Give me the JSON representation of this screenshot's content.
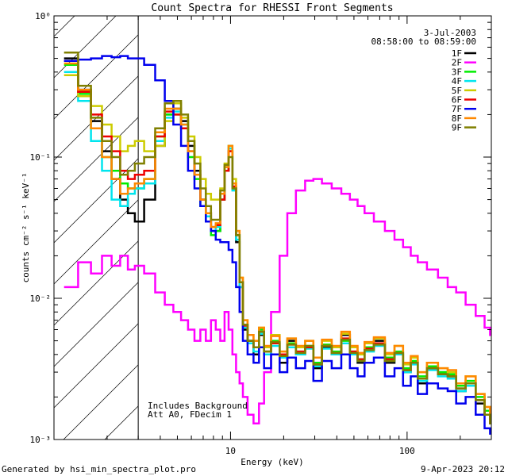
{
  "chart_data": {
    "type": "line",
    "title": "Count Spectra for RHESSI Front Segments",
    "xlabel": "Energy (keV)",
    "ylabel": "counts cm⁻² s⁻¹ keV⁻¹",
    "xscale": "log",
    "yscale": "log",
    "xlim": [
      1,
      300
    ],
    "ylim": [
      0.001,
      1
    ],
    "x_tick_labels": [
      "10",
      "100"
    ],
    "y_tick_labels": [
      "10⁰",
      "10⁻¹",
      "10⁻²",
      "10⁻³"
    ],
    "date": "3-Jul-2003",
    "time_range": "08:58:00 to 08:59:00",
    "note_lines": [
      "Includes Background",
      "Att A0, FDecim 1"
    ],
    "footer_left": "Generated by hsi_min_spectra_plot.pro",
    "footer_right": "9-Apr-2023 20:12",
    "attenuator_boundary_kev": 3,
    "series": [
      {
        "name": "1F",
        "color": "#000000",
        "energy": [
          1.25,
          1.5,
          1.75,
          2,
          2.25,
          2.5,
          2.75,
          3,
          3.5,
          4,
          4.5,
          5,
          5.5,
          6,
          6.5,
          7,
          7.5,
          8,
          8.5,
          9,
          9.5,
          10,
          10.5,
          11,
          11.5,
          12,
          13,
          14,
          15,
          16,
          18,
          20,
          22,
          25,
          28,
          31,
          35,
          40,
          45,
          50,
          55,
          60,
          70,
          80,
          90,
          100,
          110,
          120,
          140,
          160,
          180,
          200,
          230,
          260,
          290,
          300
        ],
        "counts": [
          0.5,
          0.3,
          0.18,
          0.11,
          0.07,
          0.05,
          0.04,
          0.035,
          0.05,
          0.12,
          0.2,
          0.22,
          0.18,
          0.12,
          0.08,
          0.05,
          0.04,
          0.03,
          0.03,
          0.05,
          0.08,
          0.11,
          0.06,
          0.025,
          0.012,
          0.006,
          0.005,
          0.004,
          0.0055,
          0.004,
          0.0048,
          0.0035,
          0.005,
          0.004,
          0.0045,
          0.0032,
          0.0045,
          0.004,
          0.0055,
          0.004,
          0.0035,
          0.0045,
          0.005,
          0.0035,
          0.004,
          0.003,
          0.0035,
          0.0025,
          0.0032,
          0.003,
          0.0028,
          0.0022,
          0.0025,
          0.0018,
          0.0015,
          0.0013
        ]
      },
      {
        "name": "2F",
        "color": "#ff00ff",
        "energy": [
          1.25,
          1.5,
          1.75,
          2,
          2.25,
          2.5,
          2.75,
          3,
          3.5,
          4,
          4.5,
          5,
          5.5,
          6,
          6.5,
          7,
          7.5,
          8,
          8.5,
          9,
          9.5,
          10,
          10.5,
          11,
          11.5,
          12,
          13,
          14,
          15,
          16,
          18,
          20,
          22,
          25,
          28,
          31,
          35,
          40,
          45,
          50,
          55,
          60,
          70,
          80,
          90,
          100,
          110,
          120,
          140,
          160,
          180,
          200,
          230,
          260,
          290,
          300
        ],
        "counts": [
          0.012,
          0.018,
          0.015,
          0.02,
          0.017,
          0.02,
          0.016,
          0.017,
          0.015,
          0.011,
          0.009,
          0.008,
          0.007,
          0.006,
          0.005,
          0.006,
          0.005,
          0.007,
          0.006,
          0.005,
          0.008,
          0.006,
          0.004,
          0.003,
          0.0025,
          0.002,
          0.0015,
          0.0013,
          0.0018,
          0.003,
          0.008,
          0.02,
          0.04,
          0.058,
          0.068,
          0.07,
          0.065,
          0.06,
          0.055,
          0.05,
          0.045,
          0.04,
          0.035,
          0.03,
          0.026,
          0.023,
          0.02,
          0.018,
          0.016,
          0.014,
          0.012,
          0.011,
          0.009,
          0.0075,
          0.0062,
          0.0055
        ]
      },
      {
        "name": "3F",
        "color": "#00ee00",
        "energy": [
          1.25,
          1.5,
          1.75,
          2,
          2.25,
          2.5,
          2.75,
          3,
          3.5,
          4,
          4.5,
          5,
          5.5,
          6,
          6.5,
          7,
          7.5,
          8,
          8.5,
          9,
          9.5,
          10,
          10.5,
          11,
          11.5,
          12,
          13,
          14,
          15,
          16,
          18,
          20,
          22,
          25,
          28,
          31,
          35,
          40,
          45,
          50,
          55,
          60,
          70,
          80,
          90,
          100,
          110,
          120,
          140,
          160,
          180,
          200,
          230,
          260,
          290,
          300
        ],
        "counts": [
          0.45,
          0.28,
          0.16,
          0.1,
          0.08,
          0.065,
          0.06,
          0.06,
          0.07,
          0.14,
          0.2,
          0.2,
          0.16,
          0.1,
          0.07,
          0.045,
          0.035,
          0.028,
          0.03,
          0.05,
          0.08,
          0.12,
          0.06,
          0.028,
          0.013,
          0.0065,
          0.005,
          0.0045,
          0.006,
          0.0042,
          0.005,
          0.004,
          0.0048,
          0.0042,
          0.0046,
          0.0035,
          0.0047,
          0.0042,
          0.005,
          0.0042,
          0.0037,
          0.0045,
          0.0048,
          0.0038,
          0.0042,
          0.0032,
          0.0036,
          0.0028,
          0.0033,
          0.003,
          0.0029,
          0.0024,
          0.0026,
          0.002,
          0.0016,
          0.0014
        ]
      },
      {
        "name": "4F",
        "color": "#00e5ee",
        "energy": [
          1.25,
          1.5,
          1.75,
          2,
          2.25,
          2.5,
          2.75,
          3,
          3.5,
          4,
          4.5,
          5,
          5.5,
          6,
          6.5,
          7,
          7.5,
          8,
          8.5,
          9,
          9.5,
          10,
          10.5,
          11,
          11.5,
          12,
          13,
          14,
          15,
          16,
          18,
          20,
          22,
          25,
          28,
          31,
          35,
          40,
          45,
          50,
          55,
          60,
          70,
          80,
          90,
          100,
          110,
          120,
          140,
          160,
          180,
          200,
          230,
          260,
          290,
          300
        ],
        "counts": [
          0.4,
          0.25,
          0.13,
          0.08,
          0.05,
          0.045,
          0.055,
          0.06,
          0.065,
          0.13,
          0.19,
          0.21,
          0.17,
          0.11,
          0.075,
          0.05,
          0.038,
          0.03,
          0.032,
          0.055,
          0.085,
          0.115,
          0.058,
          0.026,
          0.012,
          0.0062,
          0.0048,
          0.0042,
          0.0056,
          0.004,
          0.0046,
          0.0038,
          0.0045,
          0.004,
          0.0044,
          0.0033,
          0.0044,
          0.004,
          0.0048,
          0.004,
          0.0036,
          0.0042,
          0.0046,
          0.0036,
          0.004,
          0.003,
          0.0034,
          0.0026,
          0.0031,
          0.0028,
          0.0027,
          0.0022,
          0.0024,
          0.0019,
          0.0015,
          0.0013
        ]
      },
      {
        "name": "5F",
        "color": "#cccc00",
        "energy": [
          1.25,
          1.5,
          1.75,
          2,
          2.25,
          2.5,
          2.75,
          3,
          3.5,
          4,
          4.5,
          5,
          5.5,
          6,
          6.5,
          7,
          7.5,
          8,
          8.5,
          9,
          9.5,
          10,
          10.5,
          11,
          11.5,
          12,
          13,
          14,
          15,
          16,
          18,
          20,
          22,
          25,
          28,
          31,
          35,
          40,
          45,
          50,
          55,
          60,
          70,
          80,
          90,
          100,
          110,
          120,
          140,
          160,
          180,
          200,
          230,
          260,
          290,
          300
        ],
        "counts": [
          0.38,
          0.27,
          0.23,
          0.17,
          0.14,
          0.11,
          0.12,
          0.13,
          0.11,
          0.12,
          0.18,
          0.24,
          0.19,
          0.14,
          0.1,
          0.07,
          0.055,
          0.05,
          0.05,
          0.06,
          0.09,
          0.11,
          0.07,
          0.03,
          0.014,
          0.007,
          0.0055,
          0.005,
          0.0062,
          0.0045,
          0.0055,
          0.0042,
          0.0052,
          0.0045,
          0.005,
          0.0038,
          0.005,
          0.0045,
          0.0056,
          0.0045,
          0.004,
          0.0048,
          0.0052,
          0.004,
          0.0046,
          0.0034,
          0.0038,
          0.003,
          0.0035,
          0.0032,
          0.003,
          0.0025,
          0.0028,
          0.0021,
          0.0017,
          0.0015
        ]
      },
      {
        "name": "6F",
        "color": "#ee0000",
        "energy": [
          1.25,
          1.5,
          1.75,
          2,
          2.25,
          2.5,
          2.75,
          3,
          3.5,
          4,
          4.5,
          5,
          5.5,
          6,
          6.5,
          7,
          7.5,
          8,
          8.5,
          9,
          9.5,
          10,
          10.5,
          11,
          11.5,
          12,
          13,
          14,
          15,
          16,
          18,
          20,
          22,
          25,
          28,
          31,
          35,
          40,
          45,
          50,
          55,
          60,
          70,
          80,
          90,
          100,
          110,
          120,
          140,
          160,
          180,
          200,
          230,
          260,
          290,
          300
        ],
        "counts": [
          0.48,
          0.29,
          0.2,
          0.14,
          0.11,
          0.08,
          0.07,
          0.075,
          0.08,
          0.14,
          0.21,
          0.2,
          0.16,
          0.11,
          0.075,
          0.05,
          0.04,
          0.032,
          0.033,
          0.05,
          0.08,
          0.11,
          0.062,
          0.028,
          0.013,
          0.0064,
          0.005,
          0.0045,
          0.0058,
          0.0042,
          0.0048,
          0.004,
          0.0047,
          0.0042,
          0.0045,
          0.0034,
          0.0046,
          0.0041,
          0.0052,
          0.0042,
          0.0037,
          0.0044,
          0.0048,
          0.0037,
          0.0041,
          0.0031,
          0.0035,
          0.0027,
          0.0032,
          0.0029,
          0.0028,
          0.0023,
          0.0025,
          0.0019,
          0.0015,
          0.0013
        ]
      },
      {
        "name": "7F",
        "color": "#0000ee",
        "energy": [
          1.25,
          1.5,
          1.75,
          2,
          2.25,
          2.5,
          2.75,
          3,
          3.5,
          4,
          4.5,
          5,
          5.5,
          6,
          6.5,
          7,
          7.5,
          8,
          8.5,
          9,
          9.5,
          10,
          10.5,
          11,
          11.5,
          12,
          13,
          14,
          15,
          16,
          18,
          20,
          22,
          25,
          28,
          31,
          35,
          40,
          45,
          50,
          55,
          60,
          70,
          80,
          90,
          100,
          110,
          120,
          140,
          160,
          180,
          200,
          230,
          260,
          290,
          300
        ],
        "counts": [
          0.48,
          0.49,
          0.5,
          0.52,
          0.51,
          0.52,
          0.5,
          0.5,
          0.45,
          0.35,
          0.25,
          0.17,
          0.12,
          0.08,
          0.06,
          0.045,
          0.035,
          0.03,
          0.026,
          0.025,
          0.025,
          0.022,
          0.018,
          0.012,
          0.008,
          0.005,
          0.004,
          0.0035,
          0.0045,
          0.0032,
          0.004,
          0.003,
          0.0038,
          0.0032,
          0.0036,
          0.0026,
          0.0036,
          0.0032,
          0.004,
          0.0032,
          0.0028,
          0.0035,
          0.0038,
          0.0028,
          0.0032,
          0.0024,
          0.0028,
          0.0021,
          0.0025,
          0.0023,
          0.0022,
          0.0018,
          0.002,
          0.0015,
          0.0012,
          0.0011
        ]
      },
      {
        "name": "8F",
        "color": "#ff8800",
        "energy": [
          1.25,
          1.5,
          1.75,
          2,
          2.25,
          2.5,
          2.75,
          3,
          3.5,
          4,
          4.5,
          5,
          5.5,
          6,
          6.5,
          7,
          7.5,
          8,
          8.5,
          9,
          9.5,
          10,
          10.5,
          11,
          11.5,
          12,
          13,
          14,
          15,
          16,
          18,
          20,
          22,
          25,
          28,
          31,
          35,
          40,
          45,
          50,
          55,
          60,
          70,
          80,
          90,
          100,
          110,
          120,
          140,
          160,
          180,
          200,
          230,
          260,
          290,
          300
        ],
        "counts": [
          0.46,
          0.3,
          0.16,
          0.1,
          0.07,
          0.055,
          0.06,
          0.065,
          0.07,
          0.15,
          0.22,
          0.22,
          0.17,
          0.11,
          0.075,
          0.05,
          0.04,
          0.032,
          0.034,
          0.055,
          0.085,
          0.12,
          0.065,
          0.03,
          0.014,
          0.007,
          0.0055,
          0.005,
          0.0062,
          0.0046,
          0.0054,
          0.0042,
          0.0052,
          0.0046,
          0.005,
          0.0038,
          0.0051,
          0.0046,
          0.0058,
          0.0046,
          0.0041,
          0.0049,
          0.0053,
          0.0041,
          0.0046,
          0.0035,
          0.0039,
          0.003,
          0.0035,
          0.0032,
          0.0031,
          0.0025,
          0.0028,
          0.0021,
          0.0017,
          0.0015
        ]
      },
      {
        "name": "9F",
        "color": "#808000",
        "energy": [
          1.25,
          1.5,
          1.75,
          2,
          2.25,
          2.5,
          2.75,
          3,
          3.5,
          4,
          4.5,
          5,
          5.5,
          6,
          6.5,
          7,
          7.5,
          8,
          8.5,
          9,
          9.5,
          10,
          10.5,
          11,
          11.5,
          12,
          13,
          14,
          15,
          16,
          18,
          20,
          22,
          25,
          28,
          31,
          35,
          40,
          45,
          50,
          55,
          60,
          70,
          80,
          90,
          100,
          110,
          120,
          140,
          160,
          180,
          200,
          230,
          260,
          290,
          300
        ],
        "counts": [
          0.55,
          0.32,
          0.19,
          0.13,
          0.1,
          0.075,
          0.08,
          0.09,
          0.1,
          0.16,
          0.24,
          0.25,
          0.2,
          0.13,
          0.09,
          0.06,
          0.045,
          0.036,
          0.036,
          0.058,
          0.088,
          0.1,
          0.06,
          0.028,
          0.013,
          0.0065,
          0.005,
          0.0045,
          0.0058,
          0.0042,
          0.0049,
          0.0039,
          0.0047,
          0.0041,
          0.0046,
          0.0034,
          0.0046,
          0.0041,
          0.0051,
          0.0041,
          0.0036,
          0.0043,
          0.0047,
          0.0036,
          0.0041,
          0.0031,
          0.0035,
          0.0027,
          0.0032,
          0.0029,
          0.0028,
          0.0023,
          0.0025,
          0.0019,
          0.0015,
          0.0013
        ]
      }
    ]
  }
}
